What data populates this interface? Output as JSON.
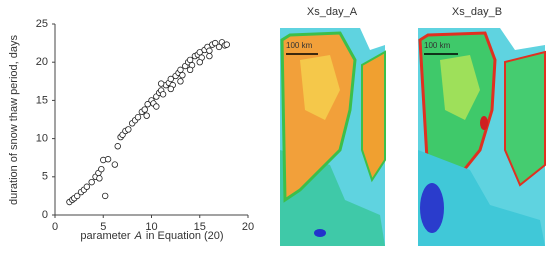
{
  "chart_data": {
    "type": "scatter",
    "xlabel": [
      "parameter",
      "A",
      "in Equation (20)"
    ],
    "ylabel": "duration of snow thaw period, days",
    "x": [
      1.5,
      1.8,
      2,
      2.3,
      2.7,
      3,
      3.3,
      3.8,
      4.2,
      4.5,
      4.8,
      4.6,
      5,
      5.5,
      5.2,
      6.2,
      6.5,
      6.8,
      7,
      7.3,
      7.6,
      8,
      8.3,
      8.6,
      9,
      9.3,
      9.6,
      10,
      10.2,
      10.5,
      10.8,
      11,
      11.2,
      11.5,
      11.8,
      12,
      12.2,
      12.5,
      12.8,
      13,
      13.2,
      13.5,
      13.8,
      14,
      14.2,
      14.5,
      14.8,
      15,
      15.2,
      15.5,
      15.8,
      16,
      16.3,
      16.6,
      17,
      17.3,
      17.6,
      17.8,
      12,
      13,
      14,
      15,
      16,
      11,
      9.5,
      10.5
    ],
    "values": [
      1.7,
      2,
      2.2,
      2.5,
      3,
      3.3,
      3.7,
      4.3,
      5,
      5.5,
      6,
      4.8,
      7.2,
      7.3,
      2.5,
      6.6,
      9,
      10.2,
      10.5,
      11,
      11.2,
      12,
      12.4,
      12.8,
      13.5,
      13.8,
      14.5,
      15,
      14.6,
      15.5,
      16,
      16.3,
      15.8,
      17,
      17.3,
      17.8,
      17,
      18.2,
      18.6,
      19,
      18.3,
      19.5,
      20,
      20.3,
      19.6,
      20.8,
      21,
      21.3,
      20.6,
      21.6,
      22,
      21.5,
      22.3,
      22.5,
      22,
      22.6,
      22.2,
      22.3,
      16.5,
      17.5,
      19,
      20,
      20.8,
      17.2,
      13,
      14.2
    ],
    "xlim": [
      0,
      20
    ],
    "xticks": [
      0,
      5,
      10,
      15,
      20
    ],
    "ylim": [
      0,
      25
    ],
    "yticks": [
      0,
      5,
      10,
      15,
      20,
      25
    ],
    "marker_color": "#222"
  },
  "maps": [
    {
      "title": "Xs_day_A",
      "scale_label": "100 km"
    },
    {
      "title": "Xs_day_B",
      "scale_label": "100 km"
    }
  ]
}
